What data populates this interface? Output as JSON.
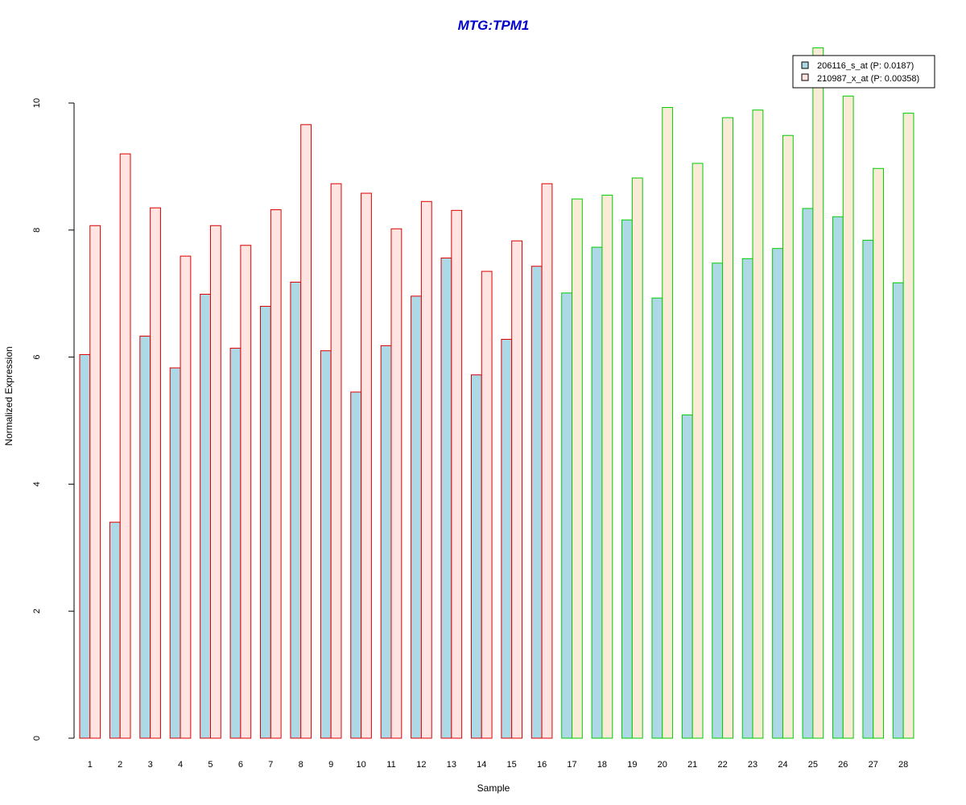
{
  "chart_data": {
    "type": "bar",
    "title": "MTG:TPM1",
    "xlabel": "Sample",
    "ylabel": "Normalized Expression",
    "ylim": [
      0,
      10.9
    ],
    "yticks": [
      0,
      2,
      4,
      6,
      8,
      10
    ],
    "categories": [
      "1",
      "2",
      "3",
      "4",
      "5",
      "6",
      "7",
      "8",
      "9",
      "10",
      "11",
      "12",
      "13",
      "14",
      "15",
      "16",
      "17",
      "18",
      "19",
      "20",
      "21",
      "22",
      "23",
      "24",
      "25",
      "26",
      "27",
      "28"
    ],
    "series": [
      {
        "name": "206116_s_at (P: 0.0187)",
        "fill": "#add8e6",
        "values": [
          6.04,
          3.4,
          6.33,
          5.83,
          6.99,
          6.14,
          6.8,
          7.18,
          6.1,
          5.45,
          6.18,
          6.96,
          7.56,
          5.72,
          6.28,
          7.43,
          7.01,
          7.73,
          8.16,
          6.93,
          5.09,
          7.48,
          7.55,
          7.71,
          8.34,
          8.21,
          7.84,
          7.17
        ]
      },
      {
        "name": "210987_x_at (P: 0.00358)",
        "fill": "#ffe4e1",
        "fill_group2": "#faebd7",
        "values": [
          8.07,
          9.2,
          8.35,
          7.59,
          8.07,
          7.76,
          8.32,
          9.66,
          8.73,
          8.58,
          8.02,
          8.45,
          8.31,
          7.35,
          7.83,
          8.73,
          8.49,
          8.55,
          8.82,
          9.93,
          9.05,
          9.77,
          9.89,
          9.49,
          10.87,
          10.11,
          8.97,
          9.84
        ]
      }
    ],
    "group_outline_colors": [
      "#dd0000",
      "#00cc00"
    ],
    "group_assignment": [
      0,
      0,
      0,
      0,
      0,
      0,
      0,
      0,
      0,
      0,
      0,
      0,
      0,
      0,
      0,
      0,
      1,
      1,
      1,
      1,
      1,
      1,
      1,
      1,
      1,
      1,
      1,
      1
    ],
    "title_color": "#0000cc",
    "grid": false,
    "legend_position": "top-right"
  }
}
